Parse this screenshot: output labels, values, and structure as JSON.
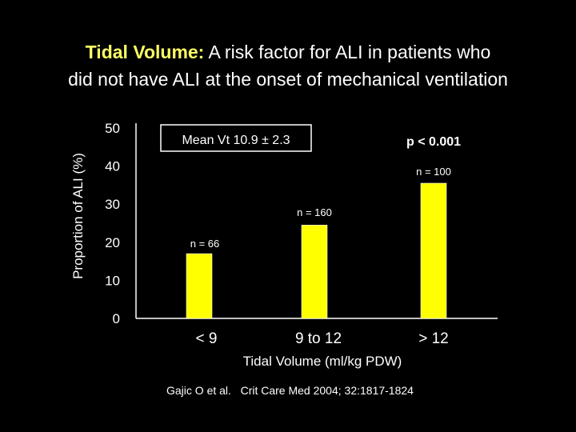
{
  "title": {
    "highlight": "Tidal Volume:",
    "line1_rest": "A risk factor for ALI in patients who",
    "line2": "did not have ALI at the onset of mechanical ventilation"
  },
  "citation": "Gajic O et al.   Crit Care Med 2004; 32:1817-1824",
  "colors": {
    "background": "#000000",
    "bar": "#ffff00",
    "text": "#ffffff",
    "title_highlight": "#ffff66"
  },
  "chart_data": {
    "type": "bar",
    "categories": [
      "< 9",
      "9 to 12",
      "> 12"
    ],
    "values": [
      17,
      24.5,
      35.5
    ],
    "bar_labels": [
      "n = 66",
      "n = 160",
      "n = 100"
    ],
    "xlabel": "Tidal Volume (ml/kg PDW)",
    "ylabel": "Proportion of ALI (%)",
    "ylim": [
      0,
      50
    ],
    "yticks": [
      0,
      10,
      20,
      30,
      40,
      50
    ],
    "grid": false,
    "annotations": {
      "box_text": "Mean Vt 10.9 ± 2.3",
      "p_value": "p < 0.001"
    }
  }
}
